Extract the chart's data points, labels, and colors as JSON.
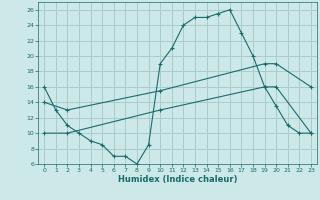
{
  "xlabel": "Humidex (Indice chaleur)",
  "background_color": "#cde8e8",
  "grid_color": "#aacccc",
  "line_color": "#1a6b6b",
  "xlim": [
    -0.5,
    23.5
  ],
  "ylim": [
    6,
    27
  ],
  "yticks": [
    6,
    8,
    10,
    12,
    14,
    16,
    18,
    20,
    22,
    24,
    26
  ],
  "xticks": [
    0,
    1,
    2,
    3,
    4,
    5,
    6,
    7,
    8,
    9,
    10,
    11,
    12,
    13,
    14,
    15,
    16,
    17,
    18,
    19,
    20,
    21,
    22,
    23
  ],
  "line1_x": [
    0,
    1,
    2,
    3,
    4,
    5,
    6,
    7,
    8,
    9,
    10,
    11,
    12,
    13,
    14,
    15,
    16,
    17,
    18,
    19,
    20,
    21,
    22,
    23
  ],
  "line1_y": [
    16,
    13,
    11,
    10,
    9,
    8.5,
    7,
    7,
    6,
    8.5,
    19,
    21,
    24,
    25,
    25,
    25.5,
    26,
    23,
    20,
    16,
    13.5,
    11,
    10,
    10
  ],
  "line2_x": [
    0,
    2,
    10,
    19,
    20,
    23
  ],
  "line2_y": [
    14,
    13,
    15.5,
    19,
    19,
    16
  ],
  "line3_x": [
    0,
    2,
    10,
    19,
    20,
    23
  ],
  "line3_y": [
    10,
    10,
    13,
    16,
    16,
    10
  ]
}
